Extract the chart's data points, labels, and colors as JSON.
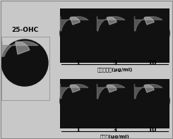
{
  "bg_color": "#c8c8c8",
  "left_label": "25-OHC",
  "top_label1": "胆固醇（μg/ml）",
  "top_label2": "胆固醇探针（μg/ml）",
  "concentrations": [
    "1",
    "3",
    "10"
  ],
  "figsize": [
    2.45,
    1.97
  ],
  "dpi": 100,
  "white": "#ffffff",
  "black": "#000000",
  "dark_gray": "#1a1a1a",
  "panel_bg": "#111111"
}
